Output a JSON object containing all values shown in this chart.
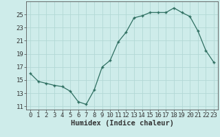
{
  "x": [
    0,
    1,
    2,
    3,
    4,
    5,
    6,
    7,
    8,
    9,
    10,
    11,
    12,
    13,
    14,
    15,
    16,
    17,
    18,
    19,
    20,
    21,
    22,
    23
  ],
  "y": [
    16.0,
    14.8,
    14.5,
    14.2,
    14.0,
    13.3,
    11.7,
    11.3,
    13.5,
    17.0,
    18.0,
    20.8,
    22.3,
    24.5,
    24.8,
    25.3,
    25.3,
    25.3,
    26.0,
    25.3,
    24.7,
    22.5,
    19.5,
    17.7
  ],
  "line_color": "#2d6e60",
  "marker": "+",
  "marker_size": 3,
  "bg_color": "#ceecea",
  "grid_color": "#b2d8d5",
  "xlabel": "Humidex (Indice chaleur)",
  "xlim": [
    -0.5,
    23.5
  ],
  "ylim": [
    10.5,
    27
  ],
  "yticks": [
    11,
    13,
    15,
    17,
    19,
    21,
    23,
    25
  ],
  "xticks": [
    0,
    1,
    2,
    3,
    4,
    5,
    6,
    7,
    8,
    9,
    10,
    11,
    12,
    13,
    14,
    15,
    16,
    17,
    18,
    19,
    20,
    21,
    22,
    23
  ],
  "xtick_labels": [
    "0",
    "1",
    "2",
    "3",
    "4",
    "5",
    "6",
    "7",
    "8",
    "9",
    "10",
    "11",
    "12",
    "13",
    "14",
    "15",
    "16",
    "17",
    "18",
    "19",
    "20",
    "21",
    "22",
    "23"
  ],
  "fontsize_tick": 6.5,
  "fontsize_label": 7.5,
  "spine_color": "#555555",
  "tick_color": "#333333"
}
